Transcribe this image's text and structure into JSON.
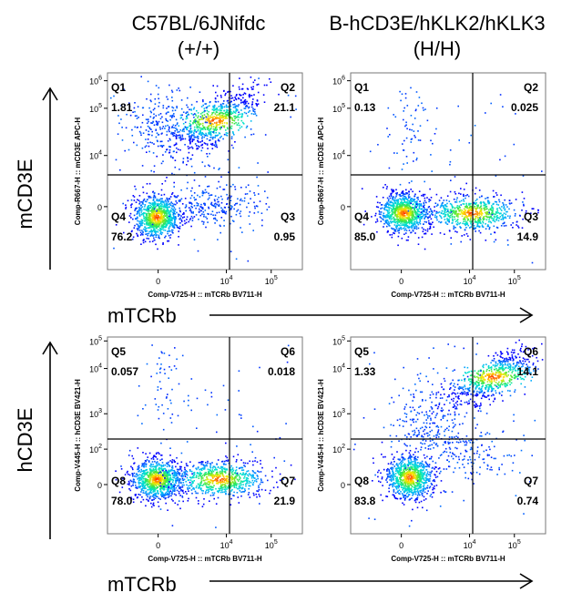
{
  "column_titles": [
    {
      "line1": "C57BL/6JNifdc",
      "line2": "(+/+)"
    },
    {
      "line1": "B-hCD3E/hKLK2/hKLK3",
      "line2": "(H/H)"
    }
  ],
  "row_labels": [
    "mCD3E",
    "hCD3E"
  ],
  "arrow_labels": [
    "mTCRb",
    "mTCRb"
  ],
  "colors": {
    "low": "#0000ff",
    "mid": "#00d9ff",
    "high": "#ff2a00",
    "gate": "#000000"
  },
  "chart_data": [
    {
      "type": "scatter",
      "title": "C57BL/6JNifdc (+/+)",
      "xlabel": "Comp-V725-H :: mTCRb BV711-H",
      "ylabel": "Comp-R667-H :: mCD3E APC-H",
      "xticks": [
        "0",
        "10^4",
        "10^5"
      ],
      "yticks": [
        "10^6",
        "10^5",
        "10^4",
        "0"
      ],
      "quadrants": [
        {
          "name": "Q1",
          "value": "1.81",
          "corner": "top-left"
        },
        {
          "name": "Q2",
          "value": "21.1",
          "corner": "top-right"
        },
        {
          "name": "Q3",
          "value": "0.95",
          "corner": "bottom-right"
        },
        {
          "name": "Q4",
          "value": "76.2",
          "corner": "bottom-left"
        }
      ]
    },
    {
      "type": "scatter",
      "title": "B-hCD3E/hKLK2/hKLK3 (H/H)",
      "xlabel": "Comp-V725-H :: mTCRb BV711-H",
      "ylabel": "Comp-R667-H :: mCD3E APC-H",
      "xticks": [
        "0",
        "10^4",
        "10^5"
      ],
      "yticks": [
        "10^6",
        "10^5",
        "10^4",
        "0"
      ],
      "quadrants": [
        {
          "name": "Q1",
          "value": "0.13",
          "corner": "top-left"
        },
        {
          "name": "Q2",
          "value": "0.025",
          "corner": "top-right"
        },
        {
          "name": "Q3",
          "value": "14.9",
          "corner": "bottom-right"
        },
        {
          "name": "Q4",
          "value": "85.0",
          "corner": "bottom-left"
        }
      ]
    },
    {
      "type": "scatter",
      "title": "C57BL/6JNifdc (+/+)",
      "xlabel": "Comp-V725-H :: mTCRb BV711-H",
      "ylabel": "Comp-V445-H :: hCD3E BV421-H",
      "xticks": [
        "0",
        "10^4",
        "10^5"
      ],
      "yticks": [
        "10^5",
        "10^4",
        "10^3",
        "10^2",
        "0"
      ],
      "quadrants": [
        {
          "name": "Q5",
          "value": "0.057",
          "corner": "top-left"
        },
        {
          "name": "Q6",
          "value": "0.018",
          "corner": "top-right"
        },
        {
          "name": "Q7",
          "value": "21.9",
          "corner": "bottom-right"
        },
        {
          "name": "Q8",
          "value": "78.0",
          "corner": "bottom-left"
        }
      ]
    },
    {
      "type": "scatter",
      "title": "B-hCD3E/hKLK2/hKLK3 (H/H)",
      "xlabel": "Comp-V725-H :: mTCRb BV711-H",
      "ylabel": "Comp-V445-H :: hCD3E BV421-H",
      "xticks": [
        "0",
        "10^4",
        "10^5"
      ],
      "yticks": [
        "10^5",
        "10^4",
        "10^3",
        "10^2",
        "0"
      ],
      "quadrants": [
        {
          "name": "Q5",
          "value": "1.33",
          "corner": "top-left"
        },
        {
          "name": "Q6",
          "value": "14.1",
          "corner": "top-right"
        },
        {
          "name": "Q7",
          "value": "0.74",
          "corner": "bottom-right"
        },
        {
          "name": "Q8",
          "value": "83.8",
          "corner": "bottom-left"
        }
      ]
    }
  ]
}
